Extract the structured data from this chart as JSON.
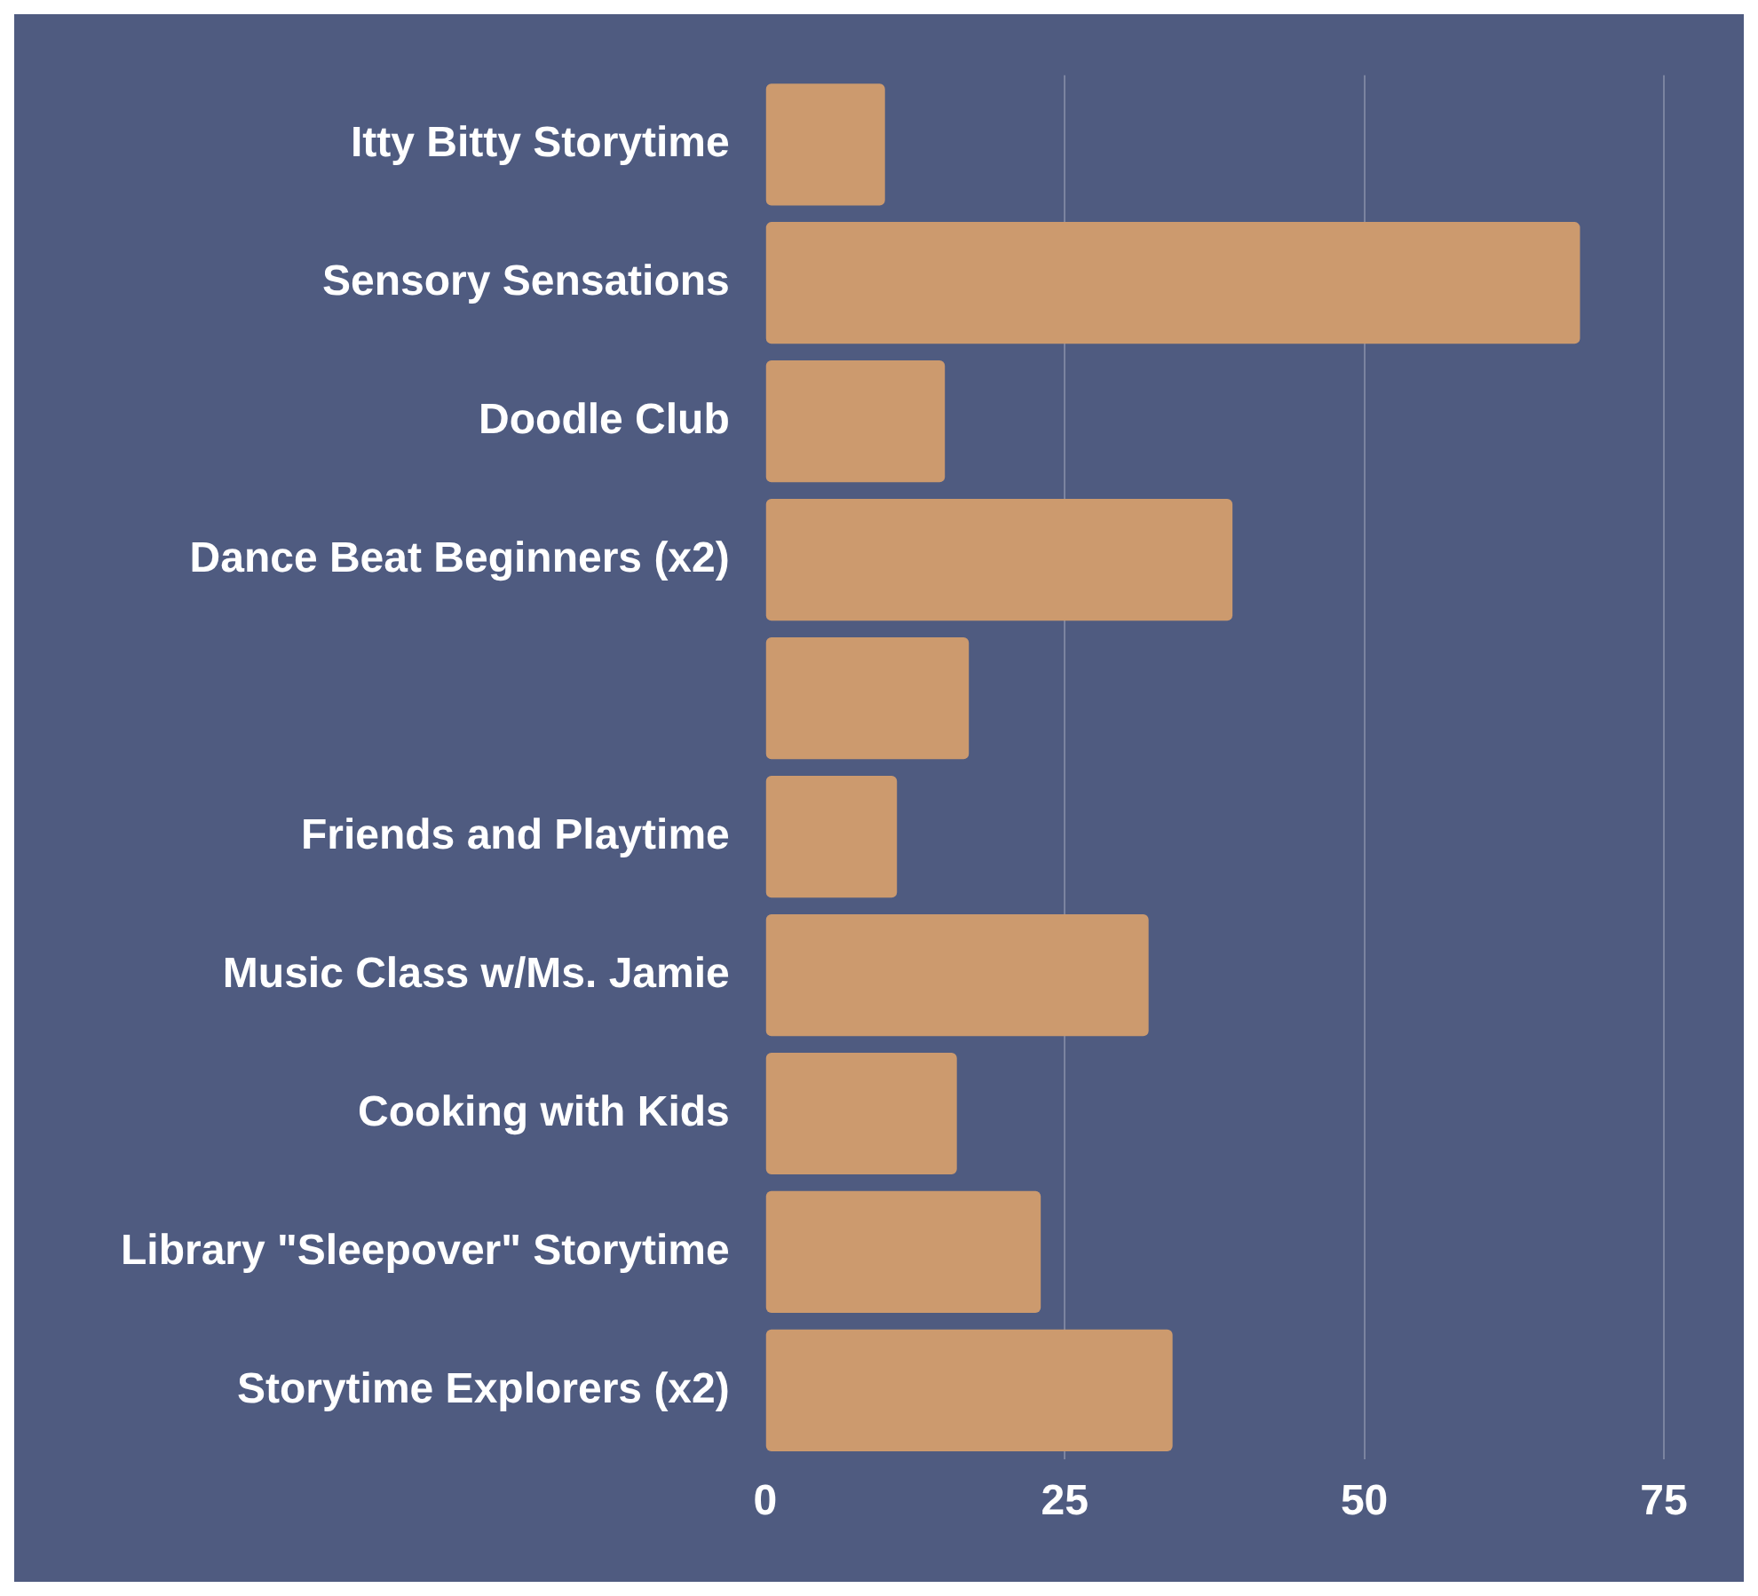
{
  "chart_data": {
    "type": "bar",
    "orientation": "horizontal",
    "categories": [
      "Itty Bitty Storytime",
      "Sensory Sensations",
      "Doodle Club",
      "Dance Beat Beginners (x2)",
      null,
      "Friends and Playtime",
      "Music Class w/Ms. Jamie",
      "Cooking with Kids",
      "Library \"Sleepover\" Storytime",
      "Storytime Explorers (x2)"
    ],
    "values": [
      10,
      68,
      15,
      39,
      17,
      11,
      32,
      16,
      23,
      34
    ],
    "color": "#cc9a6e",
    "xlim": [
      0,
      75
    ],
    "xticks": [
      0,
      25,
      50,
      75
    ],
    "grid": "x",
    "legend": false
  }
}
